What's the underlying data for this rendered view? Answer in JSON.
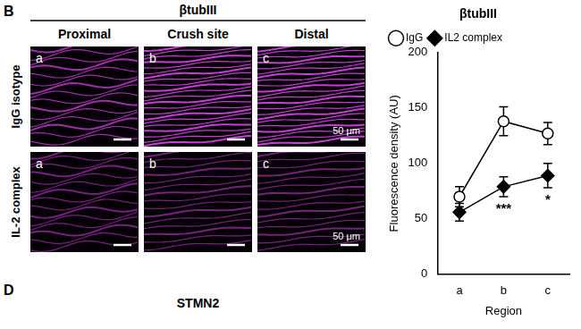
{
  "figure": {
    "panel_letter": "B",
    "header": "βtubIII",
    "columns": [
      "Proximal",
      "Crush site",
      "Distal"
    ],
    "rows": [
      "IgG isotype",
      "IL-2 complex"
    ],
    "tile_letters": [
      "a",
      "b",
      "c"
    ],
    "scale_bar": "50 μm",
    "next_panel_letter": "D",
    "next_panel_title": "STMN2"
  },
  "chart_data": {
    "type": "line",
    "title": "βtubIII",
    "x_label": "Region",
    "y_label": "Fluorescence density (AU)",
    "categories": [
      "a",
      "b",
      "c"
    ],
    "series": [
      {
        "name": "IgG",
        "color": "#000000",
        "marker": "open_circle",
        "values": [
          70,
          138,
          127
        ],
        "errors": [
          9,
          13,
          10
        ]
      },
      {
        "name": "IL2 complex",
        "color": "#000000",
        "marker": "diamond",
        "values": [
          56,
          79,
          89
        ],
        "errors": [
          8,
          9,
          11
        ]
      }
    ],
    "annotations": [
      {
        "category": "b",
        "series": "IL2 complex",
        "text": "***"
      },
      {
        "category": "c",
        "series": "IL2 complex",
        "text": "*"
      }
    ],
    "ylim": [
      0,
      200
    ],
    "yticks": [
      0,
      50,
      100,
      150,
      200
    ],
    "grid": false,
    "legend": "top"
  }
}
